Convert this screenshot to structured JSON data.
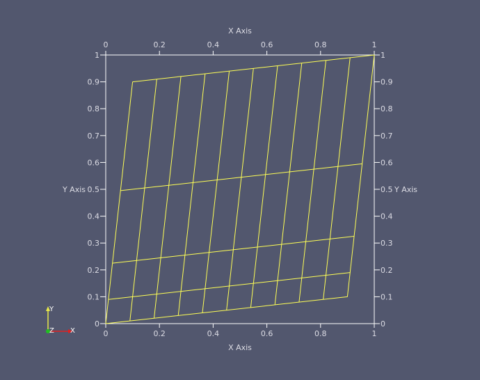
{
  "chart_data": {
    "type": "mesh-wireframe",
    "title": "",
    "xlabel": "X Axis",
    "ylabel": "Y Axis",
    "xlim": [
      0,
      1
    ],
    "ylim": [
      0,
      1
    ],
    "x_ticks": [
      "0",
      "0.2",
      "0.4",
      "0.6",
      "0.8",
      "1"
    ],
    "y_ticks": [
      "0",
      "0.1",
      "0.2",
      "0.3",
      "0.4",
      "0.5",
      "0.6",
      "0.7",
      "0.8",
      "0.9",
      "1"
    ],
    "mesh_color": "#ffff55",
    "frame_color": "#ffffff",
    "mesh": {
      "bottom_edge": [
        [
          0,
          0
        ],
        [
          0.9,
          0.1
        ]
      ],
      "top_edge": [
        [
          0.1,
          0.9
        ],
        [
          1.0,
          1.0
        ]
      ],
      "u_divisions": 10,
      "v_levels": [
        0.0,
        0.1,
        0.25,
        0.55,
        1.0
      ]
    },
    "orientation_axes": {
      "x": "X",
      "y": "Y",
      "z": "Z"
    }
  },
  "colors": {
    "background": "#52576e",
    "text": "#dcdce4"
  }
}
